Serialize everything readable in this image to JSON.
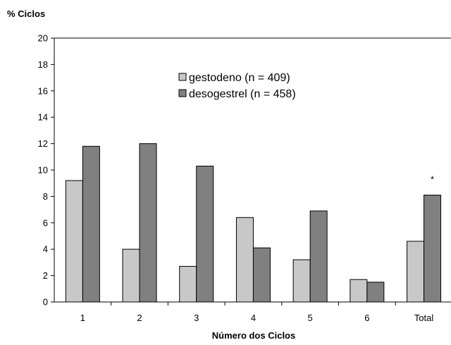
{
  "chart_data": {
    "type": "bar",
    "ylabel": "% Ciclos",
    "xlabel": "Número dos Ciclos",
    "ylim": [
      0,
      20
    ],
    "yticks": [
      0,
      2,
      4,
      6,
      8,
      10,
      12,
      14,
      16,
      18,
      20
    ],
    "grid": false,
    "legend_position": "top-center",
    "categories": [
      "1",
      "2",
      "3",
      "4",
      "5",
      "6",
      "Total"
    ],
    "series": [
      {
        "name": "gestodeno (n = 409)",
        "color": "#c8c8c8",
        "values": [
          9.2,
          4.0,
          2.7,
          6.4,
          3.2,
          1.7,
          4.6
        ]
      },
      {
        "name": "desogestrel (n = 458)",
        "color": "#808080",
        "values": [
          11.8,
          12.0,
          10.3,
          4.1,
          6.9,
          1.5,
          8.1
        ]
      }
    ],
    "annotations": [
      {
        "text": "*",
        "category": "Total",
        "series": 1
      }
    ]
  }
}
